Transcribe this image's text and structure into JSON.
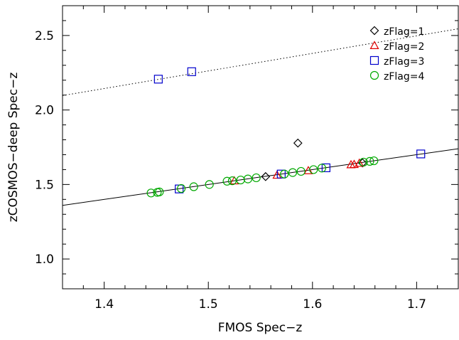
{
  "chart_data": {
    "type": "scatter",
    "title": "",
    "xlabel": "FMOS Spec−z",
    "ylabel": "zCOSMOS−deep Spec−z",
    "xlim": [
      1.36,
      1.74
    ],
    "ylim": [
      0.8,
      2.7
    ],
    "xticks": [
      1.4,
      1.5,
      1.6,
      1.7
    ],
    "xtick_labels": [
      "1.4",
      "1.5",
      "1.6",
      "1.7"
    ],
    "yticks": [
      1.0,
      1.5,
      2.0,
      2.5
    ],
    "ytick_labels": [
      "1.0",
      "1.5",
      "2.0",
      "2.5"
    ],
    "grid": false,
    "legend_position": "top-right",
    "series": [
      {
        "name": "zFlag=1",
        "marker": "diamond",
        "color": "#000000",
        "points": [
          [
            1.555,
            1.553
          ],
          [
            1.586,
            1.778
          ],
          [
            1.648,
            1.645
          ]
        ]
      },
      {
        "name": "zFlag=2",
        "marker": "triangle",
        "color": "#e00000",
        "points": [
          [
            1.525,
            1.525
          ],
          [
            1.566,
            1.563
          ],
          [
            1.596,
            1.593
          ],
          [
            1.637,
            1.633
          ],
          [
            1.64,
            1.635
          ],
          [
            1.645,
            1.643
          ]
        ]
      },
      {
        "name": "zFlag=3",
        "marker": "square",
        "color": "#0000cc",
        "points": [
          [
            1.452,
            2.207
          ],
          [
            1.484,
            2.257
          ],
          [
            1.472,
            1.47
          ],
          [
            1.57,
            1.57
          ],
          [
            1.613,
            1.612
          ],
          [
            1.704,
            1.705
          ]
        ]
      },
      {
        "name": "zFlag=4",
        "marker": "circle",
        "color": "#00a800",
        "points": [
          [
            1.445,
            1.443
          ],
          [
            1.451,
            1.447
          ],
          [
            1.453,
            1.45
          ],
          [
            1.474,
            1.473
          ],
          [
            1.486,
            1.485
          ],
          [
            1.501,
            1.5
          ],
          [
            1.518,
            1.522
          ],
          [
            1.523,
            1.525
          ],
          [
            1.531,
            1.53
          ],
          [
            1.538,
            1.537
          ],
          [
            1.546,
            1.545
          ],
          [
            1.573,
            1.57
          ],
          [
            1.581,
            1.58
          ],
          [
            1.589,
            1.588
          ],
          [
            1.601,
            1.6
          ],
          [
            1.609,
            1.61
          ],
          [
            1.649,
            1.65
          ],
          [
            1.655,
            1.655
          ],
          [
            1.659,
            1.659
          ]
        ]
      }
    ],
    "lines": [
      {
        "style": "solid",
        "x": [
          1.36,
          1.74
        ],
        "y": [
          1.36,
          1.74
        ]
      },
      {
        "style": "dotted",
        "x": [
          1.36,
          1.74
        ],
        "y": [
          2.097,
          2.545
        ]
      }
    ]
  }
}
